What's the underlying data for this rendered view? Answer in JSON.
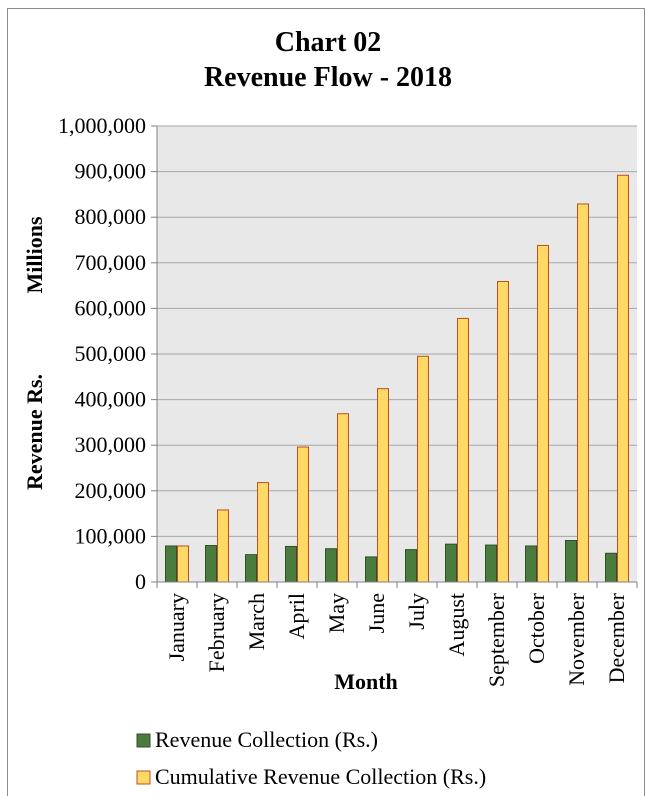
{
  "chart_data": {
    "type": "bar",
    "title": "Chart 02",
    "subtitle": "Revenue Flow - 2018",
    "xlabel": "Month",
    "ylabel": "Revenue Rs.",
    "ylabel_unit": "Millions",
    "ylim": [
      0,
      1000000
    ],
    "ytick_labels": [
      "0",
      "100,000",
      "200,000",
      "300,000",
      "400,000",
      "500,000",
      "600,000",
      "700,000",
      "800,000",
      "900,000",
      "1,000,000"
    ],
    "grid": true,
    "legend_position": "bottom",
    "categories": [
      "January",
      "February",
      "March",
      "April",
      "May",
      "June",
      "July",
      "August",
      "September",
      "October",
      "November",
      "December"
    ],
    "series": [
      {
        "name": "Revenue Collection (Rs.)",
        "color": "#4a7c3f",
        "values": [
          79000,
          80000,
          60000,
          78000,
          73000,
          55000,
          71000,
          83000,
          81000,
          79000,
          91000,
          63000
        ]
      },
      {
        "name": "Cumulative Revenue Collection (Rs.)",
        "color": "#ffd966",
        "values": [
          79000,
          158000,
          218000,
          296000,
          369000,
          424000,
          495000,
          578000,
          659000,
          738000,
          829000,
          892000
        ]
      }
    ]
  },
  "colors": {
    "plot_background": "#e8e8e8",
    "gridline": "#a6a6a6",
    "cumulative_outline": "#b8501f",
    "revenue_outline": "#2f5128"
  }
}
